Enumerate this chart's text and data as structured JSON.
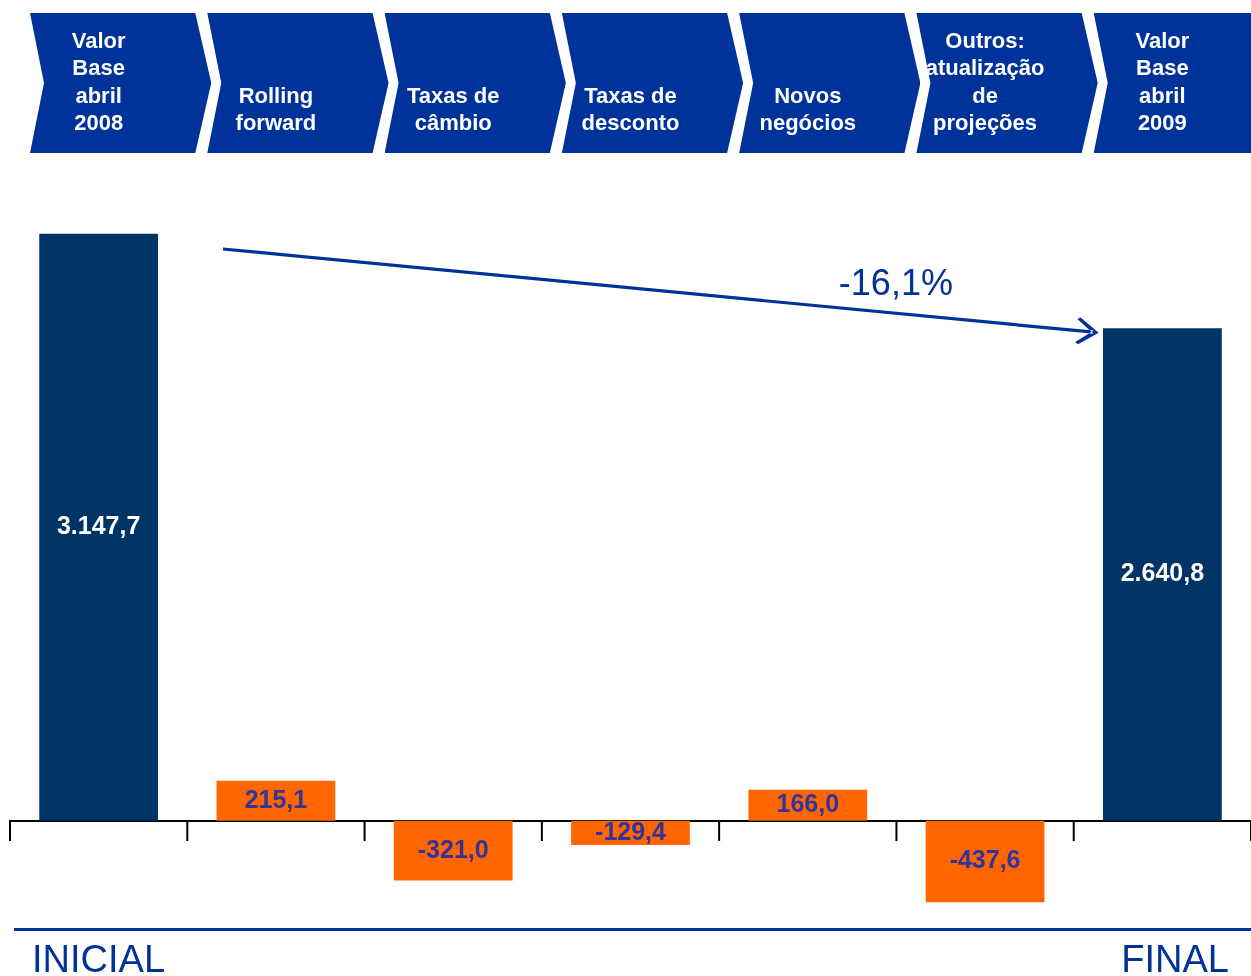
{
  "chart_data": {
    "type": "bar",
    "categories": [
      "Valor Base abril 2008",
      "Rolling forward",
      "Taxas de câmbio",
      "Taxas de desconto",
      "Novos negócios",
      "Outros: atualização de projeções",
      "Valor Base abril 2009"
    ],
    "values": [
      3147.7,
      215.1,
      -321.0,
      -129.4,
      166.0,
      -437.6,
      2640.8
    ],
    "colors": [
      "#003366",
      "#ff6600",
      "#ff6600",
      "#ff6600",
      "#ff6600",
      "#ff6600",
      "#003366"
    ],
    "value_labels": [
      "3.147,7",
      "215,1",
      "-321,0",
      "-129,4",
      "166,0",
      "-437,6",
      "2.640,8"
    ],
    "tick_labels": "x",
    "annotations": [
      "-16,1%",
      "INICIAL",
      "FINAL"
    ],
    "legend": false,
    "grid": false
  }
}
